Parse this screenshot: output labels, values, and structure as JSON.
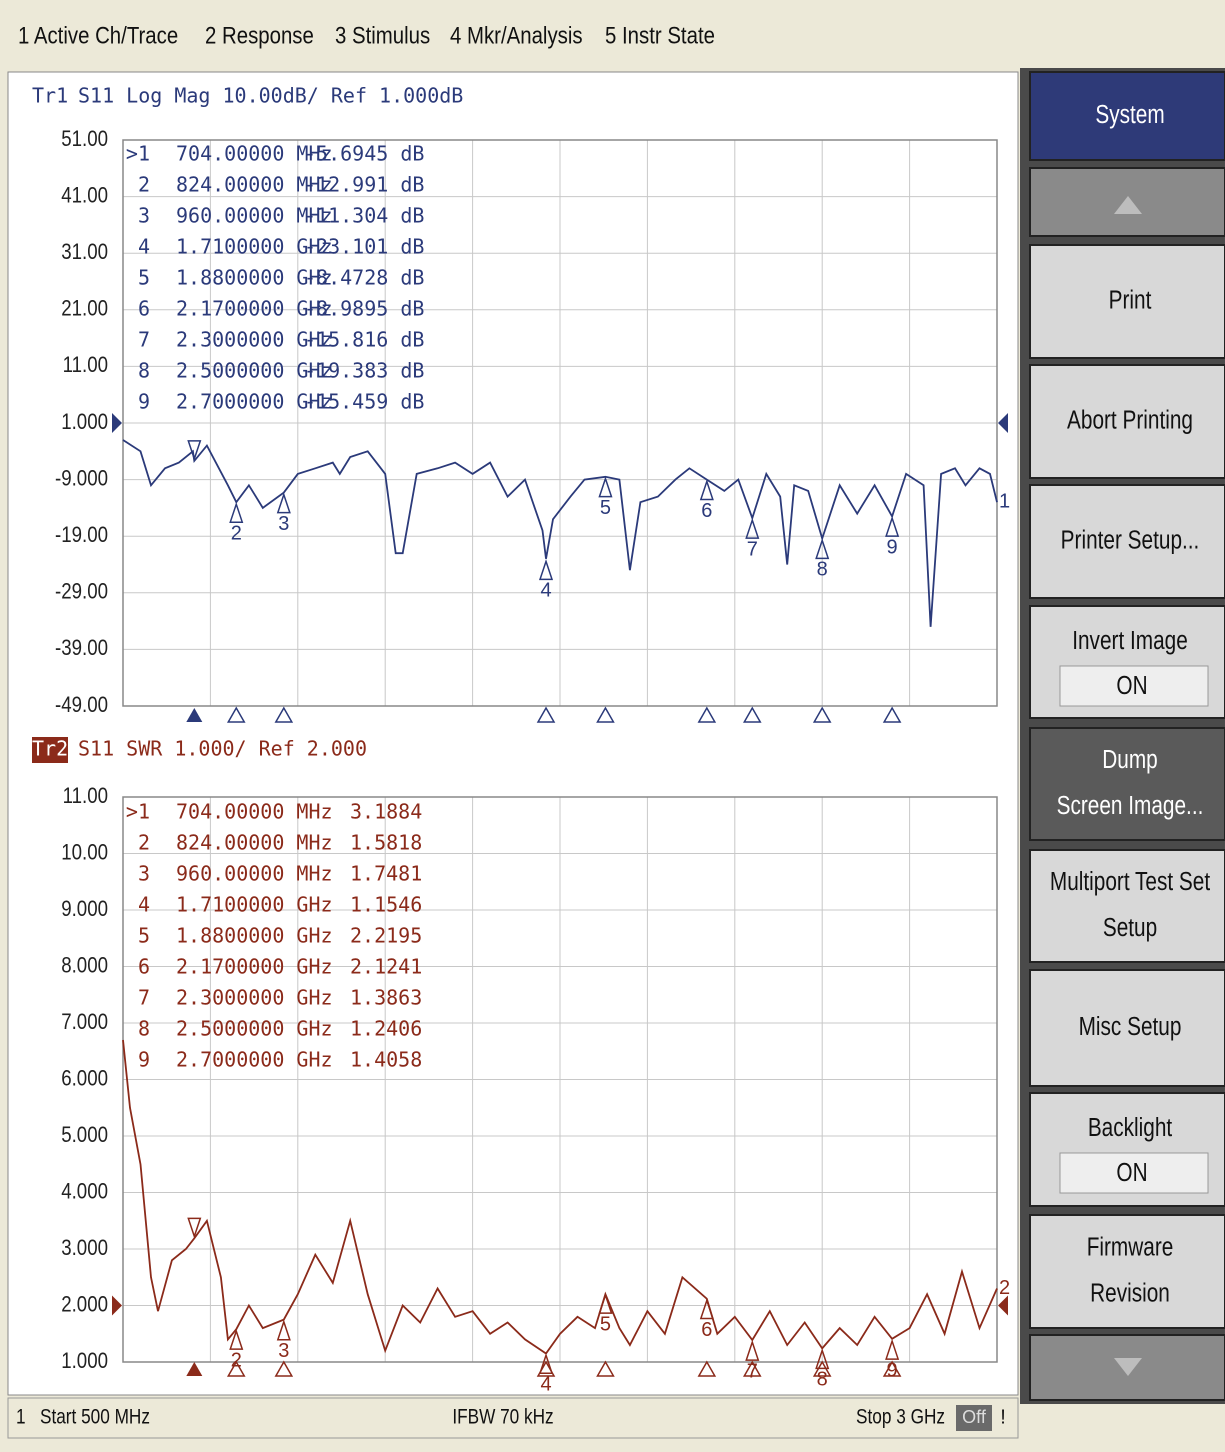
{
  "menu": [
    "1 Active Ch/Trace",
    "2 Response",
    "3 Stimulus",
    "4 Mkr/Analysis",
    "5 Instr State"
  ],
  "chart_data": [
    {
      "type": "line",
      "trace_label": "Tr1",
      "title": "S11 Log Mag 10.00dB/ Ref 1.000dB",
      "trace_number": "1",
      "color": "#2b3a7a",
      "grid": true,
      "xlim": [
        0.5,
        3
      ],
      "ylim": [
        -49,
        51
      ],
      "yticks": [
        {
          "value": 51,
          "label": "51.00"
        },
        {
          "value": 41,
          "label": "41.00"
        },
        {
          "value": 31,
          "label": "31.00"
        },
        {
          "value": 21,
          "label": "21.00"
        },
        {
          "value": 11,
          "label": "11.00"
        },
        {
          "value": 1,
          "label": "1.000"
        },
        {
          "value": -9,
          "label": "-9.000"
        },
        {
          "value": -19,
          "label": "-19.00"
        },
        {
          "value": -29,
          "label": "-29.00"
        },
        {
          "value": -39,
          "label": "-39.00"
        },
        {
          "value": -49,
          "label": "-49.00"
        }
      ],
      "x": [
        0.5,
        0.55,
        0.58,
        0.62,
        0.66,
        0.7,
        0.704,
        0.74,
        0.8,
        0.824,
        0.86,
        0.9,
        0.96,
        1.0,
        1.05,
        1.1,
        1.12,
        1.15,
        1.2,
        1.25,
        1.28,
        1.3,
        1.34,
        1.4,
        1.45,
        1.5,
        1.55,
        1.6,
        1.65,
        1.7,
        1.71,
        1.73,
        1.78,
        1.82,
        1.88,
        1.92,
        1.95,
        1.98,
        2.03,
        2.08,
        2.12,
        2.17,
        2.22,
        2.26,
        2.3,
        2.34,
        2.38,
        2.4,
        2.42,
        2.46,
        2.5,
        2.55,
        2.6,
        2.65,
        2.7,
        2.74,
        2.79,
        2.81,
        2.84,
        2.88,
        2.91,
        2.95,
        2.98,
        3.0
      ],
      "values": [
        -2,
        -4,
        -10,
        -7,
        -6,
        -4,
        -5.7,
        -3,
        -10,
        -13,
        -10,
        -14,
        -11.3,
        -8,
        -7,
        -6,
        -8,
        -5,
        -4,
        -8,
        -22,
        -22,
        -8,
        -7,
        -6,
        -8,
        -6,
        -12,
        -9,
        -18,
        -23,
        -16,
        -12,
        -9,
        -8.5,
        -9,
        -25,
        -13,
        -12,
        -9,
        -7,
        -9,
        -11,
        -9,
        -15.8,
        -8,
        -12,
        -24,
        -10,
        -11,
        -19.4,
        -10,
        -15,
        -10,
        -15.5,
        -8,
        -10,
        -35,
        -8,
        -7,
        -10,
        -7,
        -8,
        -13
      ],
      "markers": [
        {
          "number": ">1",
          "x": 0.704,
          "value": -5.6945,
          "stimulus_label": "704.00000 MHz",
          "value_label": "-5.6945 dB"
        },
        {
          "number": "2",
          "x": 0.824,
          "value": -12.991,
          "stimulus_label": "824.00000 MHz",
          "value_label": "-12.991 dB"
        },
        {
          "number": "3",
          "x": 0.96,
          "value": -11.304,
          "stimulus_label": "960.00000 MHz",
          "value_label": "-11.304 dB"
        },
        {
          "number": "4",
          "x": 1.71,
          "value": -23.101,
          "stimulus_label": "1.7100000 GHz",
          "value_label": "-23.101 dB"
        },
        {
          "number": "5",
          "x": 1.88,
          "value": -8.4728,
          "stimulus_label": "1.8800000 GHz",
          "value_label": "-8.4728 dB"
        },
        {
          "number": "6",
          "x": 2.17,
          "value": -8.9895,
          "stimulus_label": "2.1700000 GHz",
          "value_label": "-8.9895 dB"
        },
        {
          "number": "7",
          "x": 2.3,
          "value": -15.816,
          "stimulus_label": "2.3000000 GHz",
          "value_label": "-15.816 dB"
        },
        {
          "number": "8",
          "x": 2.5,
          "value": -19.383,
          "stimulus_label": "2.5000000 GHz",
          "value_label": "-19.383 dB"
        },
        {
          "number": "9",
          "x": 2.7,
          "value": -15.459,
          "stimulus_label": "2.7000000 GHz",
          "value_label": "-15.459 dB"
        }
      ]
    },
    {
      "type": "line",
      "trace_label": "Tr2",
      "title": "S11 SWR 1.000/ Ref 2.000",
      "trace_number": "2",
      "color": "#8b2a1a",
      "grid": true,
      "xlim": [
        0.5,
        3
      ],
      "ylim": [
        1,
        11
      ],
      "yticks": [
        {
          "value": 11,
          "label": "11.00"
        },
        {
          "value": 10,
          "label": "10.00"
        },
        {
          "value": 9,
          "label": "9.000"
        },
        {
          "value": 8,
          "label": "8.000"
        },
        {
          "value": 7,
          "label": "7.000"
        },
        {
          "value": 6,
          "label": "6.000"
        },
        {
          "value": 5,
          "label": "5.000"
        },
        {
          "value": 4,
          "label": "4.000"
        },
        {
          "value": 3,
          "label": "3.000"
        },
        {
          "value": 2,
          "label": "2.000"
        },
        {
          "value": 1,
          "label": "1.000"
        }
      ],
      "x": [
        0.5,
        0.52,
        0.55,
        0.58,
        0.6,
        0.64,
        0.68,
        0.704,
        0.74,
        0.78,
        0.8,
        0.824,
        0.86,
        0.9,
        0.96,
        1.0,
        1.05,
        1.1,
        1.15,
        1.2,
        1.25,
        1.3,
        1.35,
        1.4,
        1.45,
        1.5,
        1.55,
        1.6,
        1.65,
        1.71,
        1.75,
        1.8,
        1.85,
        1.88,
        1.92,
        1.95,
        2.0,
        2.05,
        2.1,
        2.17,
        2.2,
        2.25,
        2.3,
        2.35,
        2.4,
        2.45,
        2.5,
        2.55,
        2.6,
        2.65,
        2.7,
        2.75,
        2.8,
        2.85,
        2.9,
        2.95,
        3.0
      ],
      "values": [
        6.7,
        5.5,
        4.5,
        2.5,
        1.9,
        2.8,
        3.0,
        3.19,
        3.5,
        2.5,
        1.4,
        1.58,
        2.0,
        1.6,
        1.75,
        2.2,
        2.9,
        2.4,
        3.5,
        2.2,
        1.2,
        2.0,
        1.7,
        2.3,
        1.8,
        1.9,
        1.5,
        1.7,
        1.4,
        1.15,
        1.5,
        1.8,
        1.6,
        2.2,
        1.6,
        1.3,
        1.9,
        1.5,
        2.5,
        2.12,
        1.5,
        1.8,
        1.39,
        1.9,
        1.3,
        1.7,
        1.24,
        1.6,
        1.3,
        1.8,
        1.41,
        1.6,
        2.2,
        1.5,
        2.6,
        1.6,
        2.3
      ],
      "markers": [
        {
          "number": ">1",
          "x": 0.704,
          "value": 3.1884,
          "stimulus_label": "704.00000 MHz",
          "value_label": "3.1884"
        },
        {
          "number": "2",
          "x": 0.824,
          "value": 1.5818,
          "stimulus_label": "824.00000 MHz",
          "value_label": "1.5818"
        },
        {
          "number": "3",
          "x": 0.96,
          "value": 1.7481,
          "stimulus_label": "960.00000 MHz",
          "value_label": "1.7481"
        },
        {
          "number": "4",
          "x": 1.71,
          "value": 1.1546,
          "stimulus_label": "1.7100000 GHz",
          "value_label": "1.1546"
        },
        {
          "number": "5",
          "x": 1.88,
          "value": 2.2195,
          "stimulus_label": "1.8800000 GHz",
          "value_label": "2.2195"
        },
        {
          "number": "6",
          "x": 2.17,
          "value": 2.1241,
          "stimulus_label": "2.1700000 GHz",
          "value_label": "2.1241"
        },
        {
          "number": "7",
          "x": 2.3,
          "value": 1.3863,
          "stimulus_label": "2.3000000 GHz",
          "value_label": "1.3863"
        },
        {
          "number": "8",
          "x": 2.5,
          "value": 1.2406,
          "stimulus_label": "2.5000000 GHz",
          "value_label": "1.2406"
        },
        {
          "number": "9",
          "x": 2.7,
          "value": 1.4058,
          "stimulus_label": "2.7000000 GHz",
          "value_label": "1.4058"
        }
      ]
    }
  ],
  "softkeys": [
    {
      "lines": [
        "System"
      ],
      "style": "title"
    },
    {
      "lines": [
        "Print"
      ],
      "style": "normal"
    },
    {
      "lines": [
        "Abort Printing"
      ],
      "style": "normal"
    },
    {
      "lines": [
        "Printer Setup..."
      ],
      "style": "normal"
    },
    {
      "lines": [
        "Invert Image"
      ],
      "state": "ON",
      "style": "normal"
    },
    {
      "lines": [
        "Dump",
        "Screen Image..."
      ],
      "style": "active"
    },
    {
      "lines": [
        "Multiport Test Set",
        "Setup"
      ],
      "style": "normal"
    },
    {
      "lines": [
        "Misc Setup"
      ],
      "style": "normal"
    },
    {
      "lines": [
        "Backlight"
      ],
      "state": "ON",
      "style": "normal"
    },
    {
      "lines": [
        "Firmware",
        "Revision"
      ],
      "style": "normal"
    }
  ],
  "status_bar": {
    "channel": "1",
    "start": "Start 500 MHz",
    "ifbw": "IFBW 70 kHz",
    "stop": "Stop 3 GHz",
    "rf": "Off",
    "warning": "!"
  }
}
